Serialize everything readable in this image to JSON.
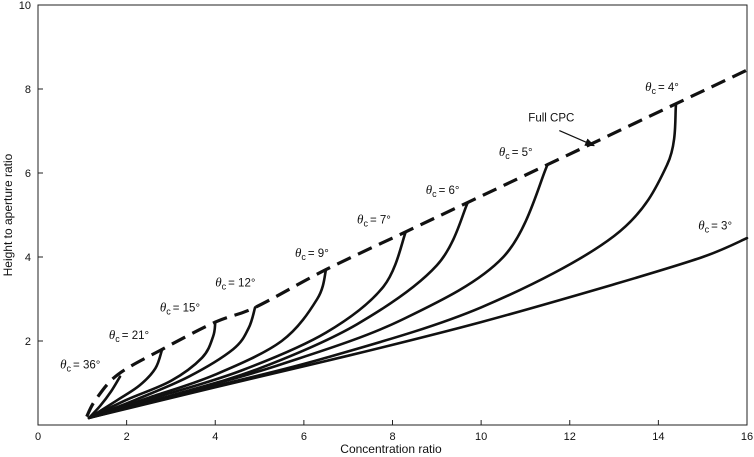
{
  "chart_data": {
    "type": "line",
    "title": "",
    "xlabel": "Concentration ratio",
    "ylabel": "Height to aperture ratio",
    "xlim": [
      0,
      16
    ],
    "ylim": [
      0,
      10
    ],
    "xticks": [
      0,
      2,
      4,
      6,
      8,
      10,
      12,
      14,
      16
    ],
    "yticks": [
      2,
      4,
      6,
      8,
      10
    ],
    "xtick_labels": [
      "0",
      "2",
      "4",
      "6",
      "8",
      "10",
      "12",
      "14",
      "16"
    ],
    "ytick_labels": [
      "2",
      "4",
      "6",
      "8",
      "10"
    ],
    "ytick_zero_label": "",
    "grid": false,
    "full_cpc": {
      "name": "Full CPC",
      "style": "dashed",
      "x": [
        1.1,
        1.3,
        1.8,
        2.8,
        4.0,
        4.9,
        6.5,
        8.3,
        9.7,
        11.5,
        14.4,
        16.0
      ],
      "y": [
        0.2,
        0.6,
        1.2,
        1.8,
        2.45,
        2.8,
        3.7,
        4.6,
        5.3,
        6.2,
        7.65,
        8.45
      ]
    },
    "truncated_cpc_series": [
      {
        "label": "= 36°",
        "theta_deg": 36,
        "x": [
          1.15,
          1.4,
          1.65,
          1.85
        ],
        "y": [
          0.17,
          0.45,
          0.8,
          1.15
        ]
      },
      {
        "label": "= 21°",
        "theta_deg": 21,
        "x": [
          1.15,
          1.8,
          2.3,
          2.65,
          2.8
        ],
        "y": [
          0.17,
          0.6,
          0.95,
          1.35,
          1.8
        ]
      },
      {
        "label": "= 15°",
        "theta_deg": 15,
        "x": [
          1.15,
          2.0,
          3.0,
          3.7,
          3.95,
          4.0
        ],
        "y": [
          0.17,
          0.6,
          1.05,
          1.6,
          2.1,
          2.45
        ]
      },
      {
        "label": "= 12°",
        "theta_deg": 12,
        "x": [
          1.15,
          2.2,
          3.4,
          4.4,
          4.75,
          4.9
        ],
        "y": [
          0.17,
          0.6,
          1.15,
          1.8,
          2.3,
          2.8
        ]
      },
      {
        "label": "= 9°",
        "theta_deg": 9,
        "x": [
          1.15,
          2.5,
          4.0,
          5.5,
          6.3,
          6.5
        ],
        "y": [
          0.17,
          0.65,
          1.2,
          2.0,
          3.0,
          3.7
        ]
      },
      {
        "label": "= 7°",
        "theta_deg": 7,
        "x": [
          1.15,
          2.8,
          4.6,
          6.5,
          7.8,
          8.3
        ],
        "y": [
          0.17,
          0.7,
          1.3,
          2.2,
          3.3,
          4.6
        ]
      },
      {
        "label": "= 6°",
        "theta_deg": 6,
        "x": [
          1.15,
          3.0,
          5.0,
          7.2,
          9.0,
          9.7
        ],
        "y": [
          0.17,
          0.7,
          1.35,
          2.4,
          3.8,
          5.3
        ]
      },
      {
        "label": "= 5°",
        "theta_deg": 5,
        "x": [
          1.15,
          3.2,
          5.5,
          8.2,
          10.5,
          11.5
        ],
        "y": [
          0.17,
          0.75,
          1.45,
          2.5,
          4.0,
          6.2
        ]
      },
      {
        "label": "= 4°",
        "theta_deg": 4,
        "x": [
          1.15,
          3.5,
          6.5,
          10.0,
          13.0,
          14.2,
          14.4
        ],
        "y": [
          0.17,
          0.8,
          1.6,
          2.8,
          4.5,
          6.2,
          7.65
        ]
      },
      {
        "label": "= 3°",
        "theta_deg": 3,
        "x": [
          1.15,
          4.0,
          7.0,
          10.0,
          13.0,
          15.0,
          16.0
        ],
        "y": [
          0.17,
          0.9,
          1.65,
          2.45,
          3.35,
          4.0,
          4.45
        ]
      }
    ],
    "annotations": [
      {
        "label": "= 36°",
        "x": 0.5,
        "y": 1.35
      },
      {
        "label": "= 21°",
        "x": 1.6,
        "y": 2.05
      },
      {
        "label": "= 15°",
        "x": 2.75,
        "y": 2.7
      },
      {
        "label": "= 12°",
        "x": 4.0,
        "y": 3.3
      },
      {
        "label": "= 9°",
        "x": 5.8,
        "y": 4.0
      },
      {
        "label": "= 7°",
        "x": 7.2,
        "y": 4.8
      },
      {
        "label": "= 6°",
        "x": 8.75,
        "y": 5.5
      },
      {
        "label": "= 5°",
        "x": 10.4,
        "y": 6.4
      },
      {
        "label": "= 4°",
        "x": 13.7,
        "y": 7.95
      },
      {
        "label": "= 3°",
        "x": 14.9,
        "y": 4.65
      }
    ],
    "full_cpc_label": {
      "text": "Full CPC",
      "x": 11.9,
      "y": 7.2,
      "arrow_to_x": 12.55,
      "arrow_to_y": 6.65
    },
    "theta_symbol": "θ",
    "theta_subscript": "c"
  }
}
